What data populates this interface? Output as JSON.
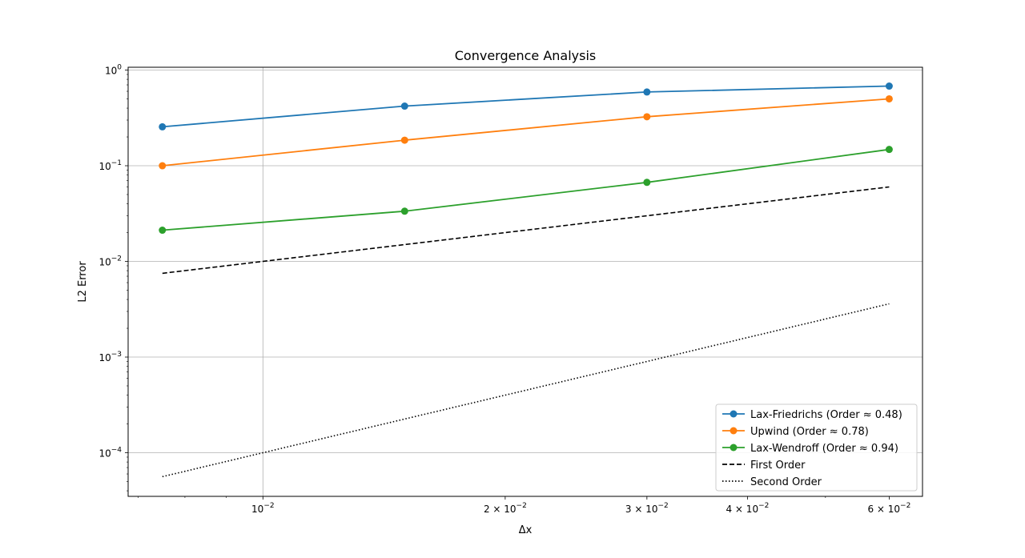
{
  "chart_data": {
    "type": "line",
    "title": "Convergence Analysis",
    "xlabel": "Δx",
    "ylabel": "L2 Error",
    "xscale": "log",
    "yscale": "log",
    "xlim": [
      0.0068,
      0.066
    ],
    "ylim": [
      3.5e-05,
      1.07
    ],
    "grid": true,
    "legend_position": "lower-right",
    "x": [
      0.0075,
      0.015,
      0.03,
      0.06
    ],
    "x_ticks": [
      {
        "value": 0.01,
        "mantissa": "",
        "exp": "−2"
      },
      {
        "value": 0.02,
        "mantissa": "2",
        "exp": "−2"
      },
      {
        "value": 0.03,
        "mantissa": "3",
        "exp": "−2"
      },
      {
        "value": 0.04,
        "mantissa": "4",
        "exp": "−2"
      },
      {
        "value": 0.06,
        "mantissa": "6",
        "exp": "−2"
      }
    ],
    "y_ticks": [
      {
        "value": 1,
        "exp": "0"
      },
      {
        "value": 0.1,
        "exp": "−1"
      },
      {
        "value": 0.01,
        "exp": "−2"
      },
      {
        "value": 0.001,
        "exp": "−3"
      },
      {
        "value": 0.0001,
        "exp": "−4"
      }
    ],
    "series": [
      {
        "name": "Lax-Friedrichs (Order ≈ 0.48)",
        "color": "#1f77b4",
        "style": "solid",
        "marker": true,
        "values": [
          0.255,
          0.42,
          0.59,
          0.68
        ]
      },
      {
        "name": "Upwind (Order ≈ 0.78)",
        "color": "#ff7f0e",
        "style": "solid",
        "marker": true,
        "values": [
          0.1,
          0.185,
          0.325,
          0.5
        ]
      },
      {
        "name": "Lax-Wendroff (Order ≈ 0.94)",
        "color": "#2ca02c",
        "style": "solid",
        "marker": true,
        "values": [
          0.0212,
          0.0335,
          0.067,
          0.148
        ]
      },
      {
        "name": "First Order",
        "color": "#000000",
        "style": "dashed",
        "marker": false,
        "values": [
          0.0075,
          0.015,
          0.03,
          0.06
        ]
      },
      {
        "name": "Second Order",
        "color": "#000000",
        "style": "dotted",
        "marker": false,
        "values": [
          5.625e-05,
          0.000225,
          0.0009,
          0.0036
        ]
      }
    ]
  }
}
